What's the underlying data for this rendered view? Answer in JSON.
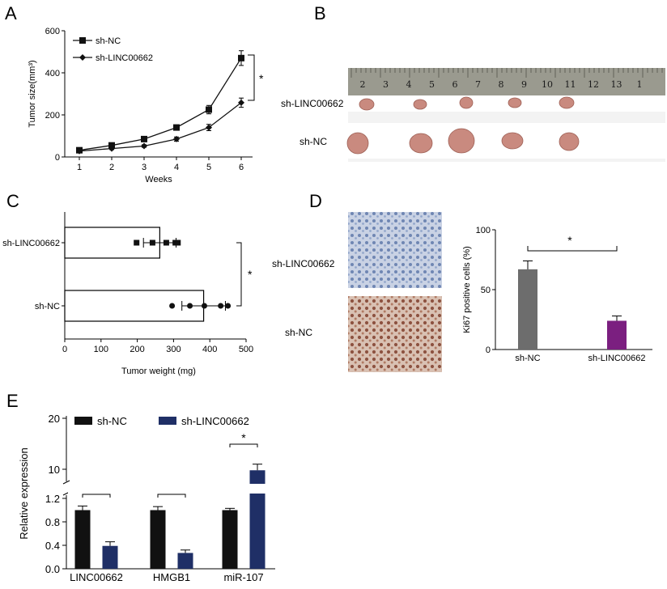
{
  "panels": {
    "A": "A",
    "B": "B",
    "C": "C",
    "D": "D",
    "E": "E"
  },
  "colors": {
    "black": "#111111",
    "gray": "#6d6d6d",
    "purple": "#7b1f80",
    "navy": "#1f2f66",
    "photo_bg": "#f3f3f3",
    "ruler": "#9a9a8f",
    "tumor": "#c98a7f",
    "ihc_blue": "#8da3c7",
    "ihc_brown": "#a0674e"
  },
  "photo": {
    "row1_label": "sh-LINC00662",
    "row2_label": "sh-NC",
    "ruler_numbers": [
      "2",
      "3",
      "4",
      "5",
      "6",
      "7",
      "8",
      "9",
      "10",
      "11",
      "12",
      "13",
      "1"
    ]
  },
  "ihc": {
    "row1_label": "sh-LINC00662",
    "row2_label": "sh-NC"
  },
  "chart_data": [
    {
      "panel": "A",
      "type": "line",
      "xlabel": "Weeks",
      "ylabel": "Tumor size(mm³)",
      "x": [
        1,
        2,
        3,
        4,
        5,
        6
      ],
      "xticks": [
        "1",
        "2",
        "3",
        "4",
        "5",
        "6"
      ],
      "yticks": [
        "0",
        "200",
        "400",
        "600"
      ],
      "ylim": [
        0,
        600
      ],
      "legend": "top-left",
      "significance": "*",
      "series": [
        {
          "name": "sh-NC",
          "marker": "square",
          "values": [
            32,
            55,
            85,
            140,
            225,
            470
          ],
          "errors": [
            5,
            6,
            8,
            12,
            20,
            35
          ]
        },
        {
          "name": "sh-LINC00662",
          "marker": "diamond",
          "values": [
            28,
            40,
            52,
            85,
            140,
            258
          ],
          "errors": [
            4,
            5,
            6,
            10,
            15,
            22
          ]
        }
      ]
    },
    {
      "panel": "C",
      "type": "bar",
      "orientation": "horizontal",
      "xlabel": "Tumor weight (mg)",
      "categories": [
        "sh-LINC00662",
        "sh-NC"
      ],
      "xticks": [
        "0",
        "100",
        "200",
        "300",
        "400",
        "500"
      ],
      "xlim": [
        0,
        500
      ],
      "significance": "*",
      "series": [
        {
          "name": "mean",
          "values": [
            262,
            383
          ],
          "errors": [
            45,
            60
          ]
        }
      ],
      "points": [
        {
          "category": "sh-LINC00662",
          "marker": "square",
          "values": [
            198,
            242,
            280,
            305,
            312
          ]
        },
        {
          "category": "sh-NC",
          "marker": "circle",
          "values": [
            296,
            345,
            385,
            430,
            450
          ]
        }
      ]
    },
    {
      "panel": "D",
      "type": "bar",
      "ylabel": "Ki67 positive cells (%)",
      "categories": [
        "sh-NC",
        "sh-LINC00662"
      ],
      "yticks": [
        "0",
        "50",
        "100"
      ],
      "ylim": [
        0,
        100
      ],
      "significance": "*",
      "series": [
        {
          "name": "Ki67",
          "values": [
            67,
            24
          ],
          "errors": [
            7,
            4
          ]
        }
      ]
    },
    {
      "panel": "E",
      "type": "bar",
      "ylabel": "Relative expression",
      "categories": [
        "LINC00662",
        "HMGB1",
        "miR-107"
      ],
      "yticks": [
        "0.0",
        "0.4",
        "0.8",
        "1.2",
        "10",
        "20"
      ],
      "axis_break": [
        1.2,
        5
      ],
      "legend": "top",
      "significance": [
        "*",
        "*",
        "*"
      ],
      "series": [
        {
          "name": "sh-NC",
          "values": [
            1.0,
            1.0,
            1.0
          ],
          "errors": [
            0.07,
            0.06,
            0.03
          ]
        },
        {
          "name": "sh-LINC00662",
          "values": [
            0.39,
            0.27,
            9.8
          ],
          "errors": [
            0.07,
            0.05,
            1.2
          ]
        }
      ]
    }
  ]
}
